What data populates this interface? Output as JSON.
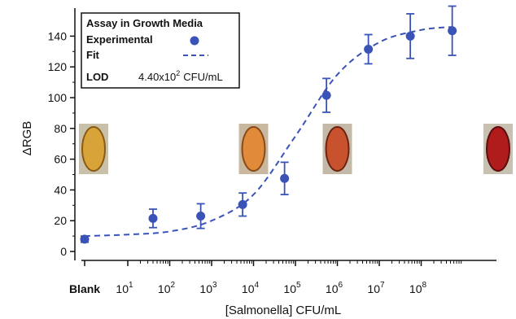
{
  "chart_data": {
    "type": "scatter",
    "xlabel": "[Salmonella] CFU/mL",
    "ylabel": "ΔRGB",
    "x_scale": "log",
    "blank_label": "Blank",
    "x_tick_exponents": [
      1,
      2,
      3,
      4,
      5,
      6,
      7,
      8
    ],
    "ylim": [
      0,
      150
    ],
    "y_ticks": [
      0,
      20,
      40,
      60,
      80,
      100,
      120,
      140
    ],
    "legend": {
      "title": "Assay in Growth Media",
      "experimental_label": "Experimental",
      "fit_label": "Fit",
      "lod_label": "LOD",
      "lod_mantissa": "4.40x10",
      "lod_exponent": "2",
      "lod_unit": "CFU/mL",
      "placement": "top-left"
    },
    "series": [
      {
        "name": "Experimental",
        "style": "markers",
        "color": "#3a53b7",
        "points": [
          {
            "x": "Blank",
            "y": 8,
            "err": 2
          },
          {
            "x": 40,
            "y": 21.5,
            "err": 6
          },
          {
            "x": 550,
            "y": 23,
            "err": 8
          },
          {
            "x": 5500,
            "y": 30.5,
            "err": 7.5
          },
          {
            "x": 55000,
            "y": 47.5,
            "err": 10.5
          },
          {
            "x": 550000,
            "y": 101.5,
            "err": 11
          },
          {
            "x": 5500000,
            "y": 131.5,
            "err": 9.5
          },
          {
            "x": 55000000,
            "y": 140,
            "err": 14.5
          },
          {
            "x": 550000000,
            "y": 143.5,
            "err": 16
          }
        ]
      },
      {
        "name": "Fit",
        "style": "dashed",
        "color": "#3a53b7",
        "x": [
          "Blank",
          10,
          100,
          1000,
          10000,
          100000,
          1000000,
          10000000,
          100000000,
          550000000
        ],
        "y": [
          10,
          11,
          13,
          20,
          37,
          75,
          115,
          136,
          144,
          146
        ]
      }
    ],
    "inset_photos": [
      {
        "near": "Blank",
        "fill": "#d8a43a",
        "edge": "#8a5a12",
        "bg": "#c8c0a8"
      },
      {
        "near": 10000,
        "fill": "#e08a3a",
        "edge": "#8a4a18",
        "bg": "#c8b8a0"
      },
      {
        "near": 1000000,
        "fill": "#c8522e",
        "edge": "#6a2410",
        "bg": "#c4b8a6"
      },
      {
        "near": 550000000,
        "fill": "#b01c1c",
        "edge": "#5a0e0e",
        "bg": "#c8c0b0"
      }
    ]
  }
}
